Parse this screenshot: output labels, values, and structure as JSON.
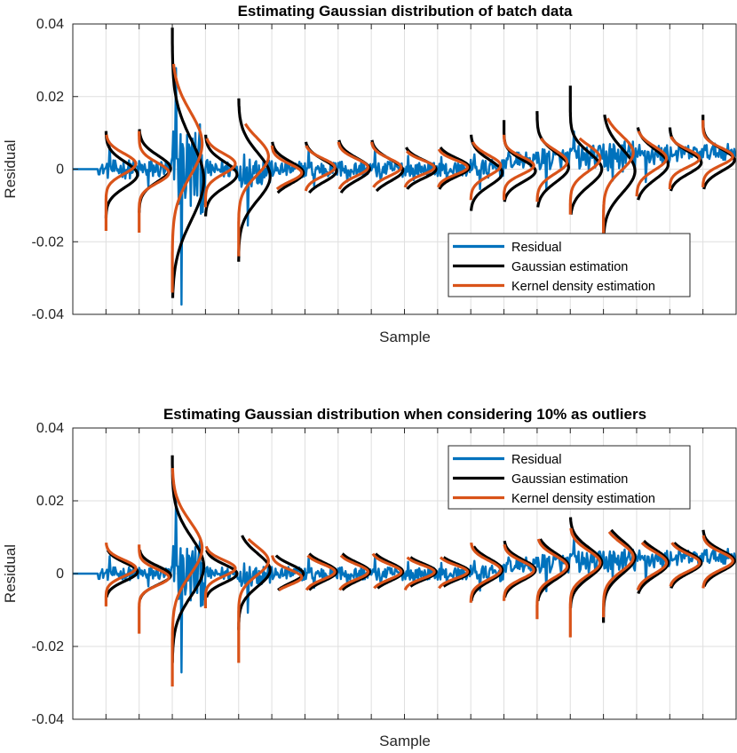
{
  "chart_data": [
    {
      "type": "line",
      "title": "Estimating Gaussian distribution of batch data",
      "xlabel": "Sample",
      "ylabel": "Residual",
      "ylim": [
        -0.04,
        0.04
      ],
      "yticks": [
        -0.04,
        -0.02,
        0,
        0.02,
        0.04
      ],
      "ytick_labels": [
        "-0.04",
        "-0.02",
        "0",
        "0.02",
        "0.04"
      ],
      "xlim": [
        0,
        20
      ],
      "grid": true,
      "legend_position": "lower-right",
      "series": [
        {
          "name": "Residual",
          "color": "#0072BD"
        },
        {
          "name": "Gaussian estimation",
          "color": "#000000"
        },
        {
          "name": "Kernel density estimation",
          "color": "#D95319"
        }
      ],
      "batch_boundaries": [
        1,
        2,
        3,
        4,
        5,
        6,
        7,
        8,
        9,
        10,
        11,
        12,
        13,
        14,
        15,
        16,
        17,
        18,
        19
      ],
      "gaussian_estimation": {
        "mean": [
          -0.0015,
          0.0002,
          -0.003,
          -0.0015,
          -0.002,
          -0.001,
          -0.0005,
          0.0,
          -0.0003,
          0.0,
          0.0005,
          -0.001,
          -0.0005,
          0.0005,
          0.0,
          -0.0005,
          0.0013,
          0.0018,
          0.0025
        ],
        "sd": [
          0.0035,
          0.0035,
          0.011,
          0.0035,
          0.0065,
          0.003,
          0.003,
          0.003,
          0.003,
          0.0025,
          0.0025,
          0.0035,
          0.003,
          0.004,
          0.0045,
          0.006,
          0.004,
          0.003,
          0.003
        ],
        "max": [
          0.0105,
          0.011,
          0.039,
          0.0095,
          0.0195,
          0.0075,
          0.0075,
          0.008,
          0.008,
          0.006,
          0.006,
          0.0095,
          0.0135,
          0.016,
          0.023,
          0.015,
          0.0115,
          0.0115,
          0.015
        ],
        "min": [
          -0.0135,
          -0.012,
          -0.0355,
          -0.013,
          -0.0255,
          -0.0065,
          -0.0065,
          -0.0065,
          -0.006,
          -0.0055,
          -0.0055,
          -0.0115,
          -0.009,
          -0.0105,
          -0.0125,
          -0.018,
          -0.0085,
          -0.006,
          -0.0055
        ]
      },
      "kde_estimation": {
        "mode": [
          0.0015,
          -0.001,
          0.007,
          0.0015,
          0.0035,
          -0.001,
          0.0005,
          0.0005,
          0.0005,
          0.0005,
          0.0005,
          0.001,
          0.001,
          0.002,
          0.003,
          0.0045,
          0.003,
          0.003,
          0.0035
        ],
        "sd": [
          0.0035,
          0.0035,
          0.011,
          0.0035,
          0.0065,
          0.003,
          0.003,
          0.003,
          0.003,
          0.0025,
          0.0025,
          0.0035,
          0.003,
          0.004,
          0.0045,
          0.006,
          0.004,
          0.003,
          0.003
        ],
        "max": [
          0.0095,
          0.0105,
          0.029,
          0.0085,
          0.0125,
          0.0065,
          0.0065,
          0.0075,
          0.0075,
          0.005,
          0.0055,
          0.0075,
          0.0095,
          0.0085,
          0.0085,
          0.014,
          0.0105,
          0.009,
          0.0135
        ],
        "min": [
          -0.017,
          -0.0175,
          -0.034,
          -0.0105,
          -0.024,
          -0.0055,
          -0.006,
          -0.0055,
          -0.005,
          -0.005,
          -0.005,
          -0.0085,
          -0.0085,
          -0.009,
          -0.0125,
          -0.019,
          -0.0075,
          -0.0055,
          -0.005
        ]
      }
    },
    {
      "type": "line",
      "title": "Estimating Gaussian distribution when considering 10% as outliers",
      "xlabel": "Sample",
      "ylabel": "Residual",
      "ylim": [
        -0.04,
        0.04
      ],
      "yticks": [
        -0.04,
        -0.02,
        0,
        0.02,
        0.04
      ],
      "ytick_labels": [
        "-0.04",
        "-0.02",
        "0",
        "0.02",
        "0.04"
      ],
      "xlim": [
        0,
        20
      ],
      "grid": true,
      "legend_position": "top-right",
      "series": [
        {
          "name": "Residual",
          "color": "#0072BD"
        },
        {
          "name": "Gaussian estimation",
          "color": "#000000"
        },
        {
          "name": "Kernel density estimation",
          "color": "#D95319"
        }
      ],
      "batch_boundaries": [
        1,
        2,
        3,
        4,
        5,
        6,
        7,
        8,
        9,
        10,
        11,
        12,
        13,
        14,
        15,
        16,
        17,
        18,
        19
      ],
      "gaussian_estimation": {
        "mean": [
          0.0005,
          -0.0005,
          0.002,
          0.0,
          0.001,
          0.0,
          0.0005,
          0.0005,
          0.0005,
          0.0005,
          0.0005,
          0.001,
          0.001,
          0.002,
          0.003,
          0.0045,
          0.003,
          0.003,
          0.0035
        ],
        "sd": [
          0.0025,
          0.0025,
          0.008,
          0.0025,
          0.0045,
          0.0025,
          0.0025,
          0.0025,
          0.0025,
          0.0022,
          0.0022,
          0.003,
          0.0028,
          0.0035,
          0.004,
          0.0045,
          0.0035,
          0.0028,
          0.0028
        ],
        "max": [
          0.0065,
          0.0065,
          0.0325,
          0.0065,
          0.0105,
          0.005,
          0.0055,
          0.0055,
          0.0055,
          0.0045,
          0.0045,
          0.0075,
          0.009,
          0.0095,
          0.0155,
          0.012,
          0.009,
          0.0085,
          0.012
        ],
        "min": [
          -0.0065,
          -0.007,
          -0.0245,
          -0.0065,
          -0.0155,
          -0.0045,
          -0.0045,
          -0.0045,
          -0.004,
          -0.0035,
          -0.0035,
          -0.0075,
          -0.0065,
          -0.0075,
          -0.0095,
          -0.0135,
          -0.0055,
          -0.004,
          -0.0035
        ]
      },
      "kde_estimation": {
        "mode": [
          0.0015,
          -0.001,
          0.007,
          0.0015,
          0.0035,
          -0.001,
          0.0005,
          0.0005,
          0.0005,
          0.0005,
          0.0005,
          0.001,
          0.001,
          0.002,
          0.003,
          0.0045,
          0.003,
          0.003,
          0.0035
        ],
        "sd": [
          0.0028,
          0.0028,
          0.009,
          0.0028,
          0.005,
          0.0026,
          0.0026,
          0.0026,
          0.0026,
          0.0023,
          0.0023,
          0.0032,
          0.003,
          0.0037,
          0.0042,
          0.0048,
          0.0037,
          0.003,
          0.003
        ],
        "max": [
          0.0085,
          0.008,
          0.029,
          0.0075,
          0.0095,
          0.005,
          0.005,
          0.005,
          0.0055,
          0.0045,
          0.0045,
          0.0085,
          0.008,
          0.0095,
          0.0125,
          0.0115,
          0.0085,
          0.0085,
          0.0105
        ],
        "min": [
          -0.009,
          -0.0165,
          -0.031,
          -0.0095,
          -0.0245,
          -0.0045,
          -0.0045,
          -0.0045,
          -0.004,
          -0.0045,
          -0.004,
          -0.008,
          -0.0075,
          -0.0125,
          -0.0175,
          -0.012,
          -0.0045,
          -0.0035,
          -0.004
        ]
      }
    }
  ]
}
